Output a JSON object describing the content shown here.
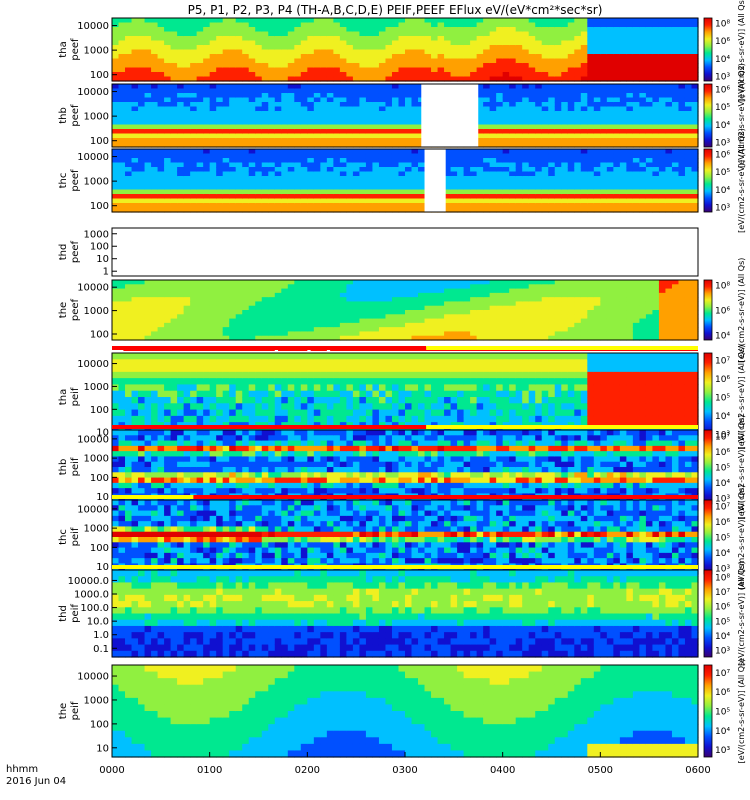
{
  "title": "P5, P1, P2, P3, P4 (TH-A,B,C,D,E) PEIF,PEEF EFlux eV/(eV*cm²*sec*sr)",
  "footer": {
    "time_label": "hhmm",
    "date_label": "2016 Jun 04"
  },
  "colors": {
    "colormap": [
      "#3a0070",
      "#1010d0",
      "#0050ff",
      "#00c0ff",
      "#00e890",
      "#90f040",
      "#f0f020",
      "#ffa000",
      "#ff2000",
      "#e00000"
    ],
    "flag_red": "#ff0000",
    "flag_yellow": "#ffff00",
    "data_gap": "#ffffff"
  },
  "chart_data": {
    "type": "heatmap",
    "x_axis": {
      "tick_labels": [
        "0000",
        "0100",
        "0200",
        "0300",
        "0400",
        "0500",
        "0600"
      ],
      "range_hhmm": [
        "0000",
        "0600"
      ]
    },
    "panels": [
      {
        "id": "tha-peef",
        "ylabel": [
          "tha",
          "peef"
        ],
        "yticks": [
          "10000",
          "1000",
          "100"
        ],
        "yscale": "log",
        "cbar_label": "[eV/(cm2-s-sr-eV)] (All Qs)",
        "cbar_ticks": [
          "10⁸",
          "10⁶",
          "10⁴",
          "10³"
        ],
        "regime": "transition",
        "transition_time": "0448"
      },
      {
        "id": "thb-peef",
        "ylabel": [
          "thb",
          "peef"
        ],
        "yticks": [
          "10000",
          "1000",
          "100"
        ],
        "yscale": "log",
        "cbar_label": "[eV/(cm2-s-sr-eV)] (All Qs)",
        "cbar_ticks": [
          "10⁶",
          "10⁵",
          "10⁴",
          "10³"
        ],
        "regime": "bands",
        "gaps": [
          [
            "0310",
            "0345"
          ]
        ]
      },
      {
        "id": "thc-peef",
        "ylabel": [
          "thc",
          "peef"
        ],
        "yticks": [
          "10000",
          "1000",
          "100"
        ],
        "yscale": "log",
        "cbar_label": "[eV/(cm2-s-sr-eV)] (All Qs)",
        "cbar_ticks": [
          "10⁶",
          "10⁵",
          "10⁴",
          "10³"
        ],
        "regime": "bands",
        "gaps": [
          [
            "0312",
            "0325"
          ]
        ]
      },
      {
        "id": "thd-peef",
        "ylabel": [
          "thd",
          "peef"
        ],
        "yticks": [
          "1000",
          "100",
          "10",
          "1"
        ],
        "yscale": "log",
        "cbar_label": "",
        "cbar_ticks": [],
        "regime": "empty"
      },
      {
        "id": "the-peef",
        "ylabel": [
          "the",
          "peef"
        ],
        "yticks": [
          "10000",
          "1000",
          "100"
        ],
        "yscale": "log",
        "cbar_label": "[eV/(cm2-s-sr-eV)] (All Qs)",
        "cbar_ticks": [
          "10⁸",
          "10⁶",
          "10⁴"
        ],
        "regime": "smooth",
        "flag": {
          "color": "red",
          "segments": [
            [
              "0007",
              "0140"
            ],
            [
              "0142",
              "0200"
            ],
            [
              "0202",
              "0212"
            ],
            [
              "0214",
              "0600"
            ]
          ]
        }
      },
      {
        "id": "tha-peif",
        "ylabel": [
          "tha",
          "peif"
        ],
        "yticks": [
          "10000",
          "1000",
          "100",
          "10"
        ],
        "yscale": "log",
        "cbar_label": "[eV/(cm2-s-sr-eV)] (All Qs)",
        "cbar_ticks": [
          "10⁷",
          "10⁶",
          "10⁵",
          "10⁴",
          "10³"
        ],
        "regime": "ion_transition",
        "transition_time": "0448",
        "flag": {
          "color": "mixed",
          "segments": [
            [
              "0000",
              "0313",
              "red"
            ],
            [
              "0313",
              "0600",
              "yellow"
            ]
          ]
        }
      },
      {
        "id": "thb-peif",
        "ylabel": [
          "thb",
          "peif"
        ],
        "yticks": [
          "10000",
          "1000",
          "100",
          "10"
        ],
        "yscale": "log",
        "cbar_label": "[eV/(cm2-s-sr-eV)] (All Qs)",
        "cbar_ticks": [
          "10⁷",
          "10⁶",
          "10⁵",
          "10⁴",
          "10³"
        ],
        "regime": "ion_bands",
        "flag": {
          "color": "mixed",
          "segments": [
            [
              "0000",
              "0313",
              "red"
            ],
            [
              "0313",
              "0600",
              "yellow"
            ]
          ]
        }
      },
      {
        "id": "thc-peif",
        "ylabel": [
          "thc",
          "peif"
        ],
        "yticks": [
          "10000",
          "1000",
          "100",
          "10"
        ],
        "yscale": "log",
        "cbar_label": "[eV/(cm2-s-sr-eV)] (All Qs)",
        "cbar_ticks": [
          "10⁷",
          "10⁶",
          "10⁵",
          "10⁴",
          "10³"
        ],
        "regime": "ion_bands2",
        "flag": {
          "color": "mixed",
          "segments": [
            [
              "0000",
              "0050",
              "yellow"
            ],
            [
              "0050",
              "0600",
              "red"
            ]
          ]
        }
      },
      {
        "id": "thd-peif",
        "ylabel": [
          "thd",
          "peif"
        ],
        "yticks": [
          "10000.0",
          "1000.0",
          "100.0",
          "10.0",
          "1.0",
          "0.1"
        ],
        "yscale": "log",
        "cbar_label": "[eV/(cm2-s-sr-eV)] (All Qs)",
        "cbar_ticks": [
          "10⁸",
          "10⁷",
          "10⁶",
          "10⁵",
          "10⁴",
          "10³"
        ],
        "regime": "ion_wide",
        "flag": {
          "color": "yellow",
          "segments": [
            [
              "0000",
              "0600"
            ]
          ]
        }
      },
      {
        "id": "the-peif",
        "ylabel": [
          "the",
          "peif"
        ],
        "yticks": [
          "10000",
          "1000",
          "100",
          "10"
        ],
        "yscale": "log",
        "cbar_label": "[eV/(cm2-s-sr-eV)] (All Qs)",
        "cbar_ticks": [
          "10⁷",
          "10⁶",
          "10⁵",
          "10⁴",
          "10³"
        ],
        "regime": "ion_smooth"
      }
    ]
  }
}
